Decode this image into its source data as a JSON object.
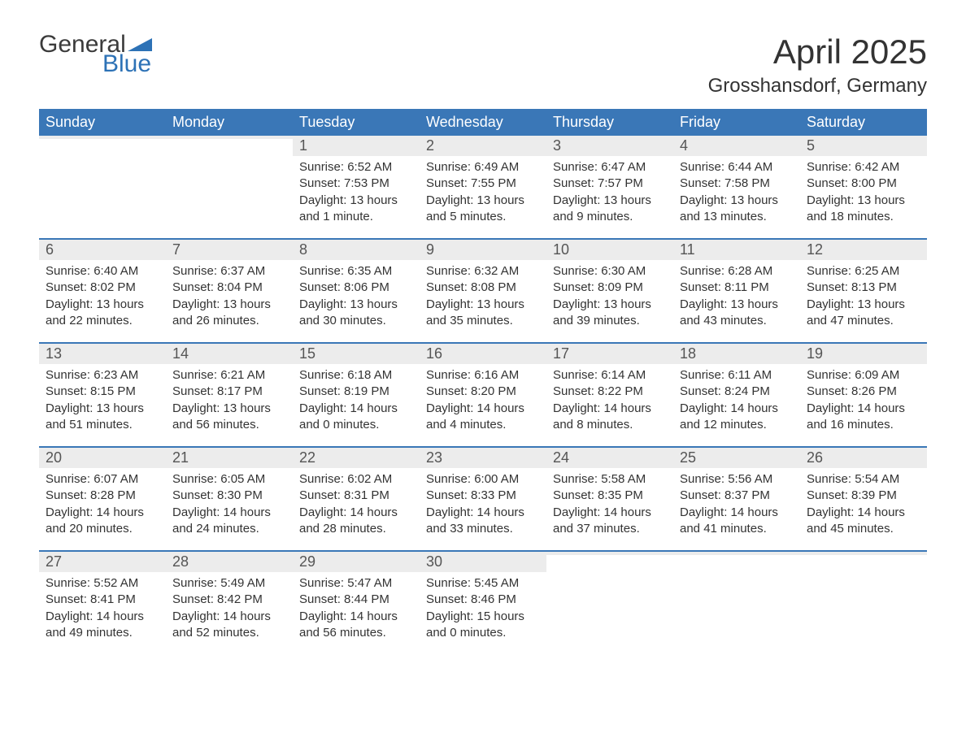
{
  "logo": {
    "line1": "General",
    "line2": "Blue",
    "tri_color": "#2d72b6"
  },
  "title": "April 2025",
  "location": "Grosshansdorf, Germany",
  "colors": {
    "header_bg": "#3a77b7",
    "header_text": "#ffffff",
    "daynum_bg": "#ececec",
    "daynum_text": "#555555",
    "body_text": "#333333",
    "rule": "#3a77b7"
  },
  "weekdays": [
    "Sunday",
    "Monday",
    "Tuesday",
    "Wednesday",
    "Thursday",
    "Friday",
    "Saturday"
  ],
  "weeks": [
    [
      {
        "n": "",
        "sr": "",
        "ss": "",
        "dl": ""
      },
      {
        "n": "",
        "sr": "",
        "ss": "",
        "dl": ""
      },
      {
        "n": "1",
        "sr": "Sunrise: 6:52 AM",
        "ss": "Sunset: 7:53 PM",
        "dl": "Daylight: 13 hours and 1 minute."
      },
      {
        "n": "2",
        "sr": "Sunrise: 6:49 AM",
        "ss": "Sunset: 7:55 PM",
        "dl": "Daylight: 13 hours and 5 minutes."
      },
      {
        "n": "3",
        "sr": "Sunrise: 6:47 AM",
        "ss": "Sunset: 7:57 PM",
        "dl": "Daylight: 13 hours and 9 minutes."
      },
      {
        "n": "4",
        "sr": "Sunrise: 6:44 AM",
        "ss": "Sunset: 7:58 PM",
        "dl": "Daylight: 13 hours and 13 minutes."
      },
      {
        "n": "5",
        "sr": "Sunrise: 6:42 AM",
        "ss": "Sunset: 8:00 PM",
        "dl": "Daylight: 13 hours and 18 minutes."
      }
    ],
    [
      {
        "n": "6",
        "sr": "Sunrise: 6:40 AM",
        "ss": "Sunset: 8:02 PM",
        "dl": "Daylight: 13 hours and 22 minutes."
      },
      {
        "n": "7",
        "sr": "Sunrise: 6:37 AM",
        "ss": "Sunset: 8:04 PM",
        "dl": "Daylight: 13 hours and 26 minutes."
      },
      {
        "n": "8",
        "sr": "Sunrise: 6:35 AM",
        "ss": "Sunset: 8:06 PM",
        "dl": "Daylight: 13 hours and 30 minutes."
      },
      {
        "n": "9",
        "sr": "Sunrise: 6:32 AM",
        "ss": "Sunset: 8:08 PM",
        "dl": "Daylight: 13 hours and 35 minutes."
      },
      {
        "n": "10",
        "sr": "Sunrise: 6:30 AM",
        "ss": "Sunset: 8:09 PM",
        "dl": "Daylight: 13 hours and 39 minutes."
      },
      {
        "n": "11",
        "sr": "Sunrise: 6:28 AM",
        "ss": "Sunset: 8:11 PM",
        "dl": "Daylight: 13 hours and 43 minutes."
      },
      {
        "n": "12",
        "sr": "Sunrise: 6:25 AM",
        "ss": "Sunset: 8:13 PM",
        "dl": "Daylight: 13 hours and 47 minutes."
      }
    ],
    [
      {
        "n": "13",
        "sr": "Sunrise: 6:23 AM",
        "ss": "Sunset: 8:15 PM",
        "dl": "Daylight: 13 hours and 51 minutes."
      },
      {
        "n": "14",
        "sr": "Sunrise: 6:21 AM",
        "ss": "Sunset: 8:17 PM",
        "dl": "Daylight: 13 hours and 56 minutes."
      },
      {
        "n": "15",
        "sr": "Sunrise: 6:18 AM",
        "ss": "Sunset: 8:19 PM",
        "dl": "Daylight: 14 hours and 0 minutes."
      },
      {
        "n": "16",
        "sr": "Sunrise: 6:16 AM",
        "ss": "Sunset: 8:20 PM",
        "dl": "Daylight: 14 hours and 4 minutes."
      },
      {
        "n": "17",
        "sr": "Sunrise: 6:14 AM",
        "ss": "Sunset: 8:22 PM",
        "dl": "Daylight: 14 hours and 8 minutes."
      },
      {
        "n": "18",
        "sr": "Sunrise: 6:11 AM",
        "ss": "Sunset: 8:24 PM",
        "dl": "Daylight: 14 hours and 12 minutes."
      },
      {
        "n": "19",
        "sr": "Sunrise: 6:09 AM",
        "ss": "Sunset: 8:26 PM",
        "dl": "Daylight: 14 hours and 16 minutes."
      }
    ],
    [
      {
        "n": "20",
        "sr": "Sunrise: 6:07 AM",
        "ss": "Sunset: 8:28 PM",
        "dl": "Daylight: 14 hours and 20 minutes."
      },
      {
        "n": "21",
        "sr": "Sunrise: 6:05 AM",
        "ss": "Sunset: 8:30 PM",
        "dl": "Daylight: 14 hours and 24 minutes."
      },
      {
        "n": "22",
        "sr": "Sunrise: 6:02 AM",
        "ss": "Sunset: 8:31 PM",
        "dl": "Daylight: 14 hours and 28 minutes."
      },
      {
        "n": "23",
        "sr": "Sunrise: 6:00 AM",
        "ss": "Sunset: 8:33 PM",
        "dl": "Daylight: 14 hours and 33 minutes."
      },
      {
        "n": "24",
        "sr": "Sunrise: 5:58 AM",
        "ss": "Sunset: 8:35 PM",
        "dl": "Daylight: 14 hours and 37 minutes."
      },
      {
        "n": "25",
        "sr": "Sunrise: 5:56 AM",
        "ss": "Sunset: 8:37 PM",
        "dl": "Daylight: 14 hours and 41 minutes."
      },
      {
        "n": "26",
        "sr": "Sunrise: 5:54 AM",
        "ss": "Sunset: 8:39 PM",
        "dl": "Daylight: 14 hours and 45 minutes."
      }
    ],
    [
      {
        "n": "27",
        "sr": "Sunrise: 5:52 AM",
        "ss": "Sunset: 8:41 PM",
        "dl": "Daylight: 14 hours and 49 minutes."
      },
      {
        "n": "28",
        "sr": "Sunrise: 5:49 AM",
        "ss": "Sunset: 8:42 PM",
        "dl": "Daylight: 14 hours and 52 minutes."
      },
      {
        "n": "29",
        "sr": "Sunrise: 5:47 AM",
        "ss": "Sunset: 8:44 PM",
        "dl": "Daylight: 14 hours and 56 minutes."
      },
      {
        "n": "30",
        "sr": "Sunrise: 5:45 AM",
        "ss": "Sunset: 8:46 PM",
        "dl": "Daylight: 15 hours and 0 minutes."
      },
      {
        "n": "",
        "sr": "",
        "ss": "",
        "dl": ""
      },
      {
        "n": "",
        "sr": "",
        "ss": "",
        "dl": ""
      },
      {
        "n": "",
        "sr": "",
        "ss": "",
        "dl": ""
      }
    ]
  ]
}
